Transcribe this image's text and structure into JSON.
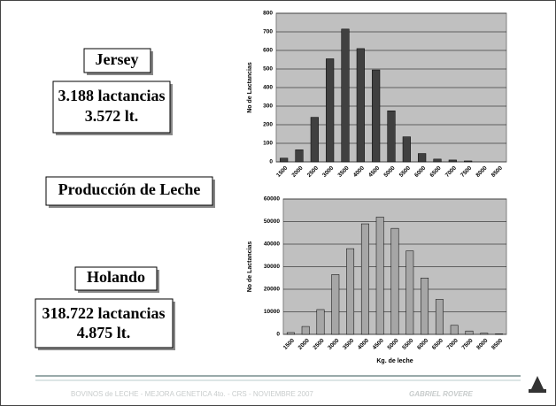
{
  "slide": {
    "jersey": "Jersey",
    "jersey_lact": "3.188 lactancias",
    "jersey_lt": "3.572 lt.",
    "production": "Producción de Leche",
    "holando": "Holando",
    "holando_lact": "318.722 lactancias",
    "holando_lt": "4.875 lt.",
    "footer": "BOVINOS de LECHE - MEJORA GENETICA 4to. - CRS - NOVIEMBRE 2007",
    "author": "GABRIEL ROVERE"
  },
  "chart_data": [
    {
      "type": "bar",
      "y_label": "No de Lactancias",
      "categories": [
        "1500",
        "2000",
        "2500",
        "3000",
        "3500",
        "4000",
        "4500",
        "5000",
        "5500",
        "6000",
        "6500",
        "7000",
        "7500",
        "8000",
        "8500"
      ],
      "values": [
        20,
        65,
        240,
        555,
        715,
        610,
        495,
        275,
        135,
        45,
        15,
        10,
        5,
        0,
        0
      ],
      "color": "#404040",
      "ylim": [
        0,
        800
      ],
      "yticks": [
        0,
        100,
        200,
        300,
        400,
        500,
        600,
        700,
        800
      ],
      "grid": true
    },
    {
      "type": "bar",
      "y_label": "No de Lactancias",
      "x_label": "Kg. de leche",
      "categories": [
        "1500",
        "2000",
        "2500",
        "3000",
        "3500",
        "4000",
        "4500",
        "5000",
        "5500",
        "6000",
        "6500",
        "7000",
        "7500",
        "8000",
        "8500"
      ],
      "values": [
        800,
        3500,
        11000,
        26500,
        38000,
        49000,
        52000,
        47000,
        37000,
        25000,
        15500,
        4000,
        1500,
        500,
        200
      ],
      "color": "#a6a6a6",
      "ylim": [
        0,
        60000
      ],
      "yticks": [
        0,
        10000,
        20000,
        30000,
        40000,
        50000,
        60000
      ],
      "grid": true
    }
  ]
}
